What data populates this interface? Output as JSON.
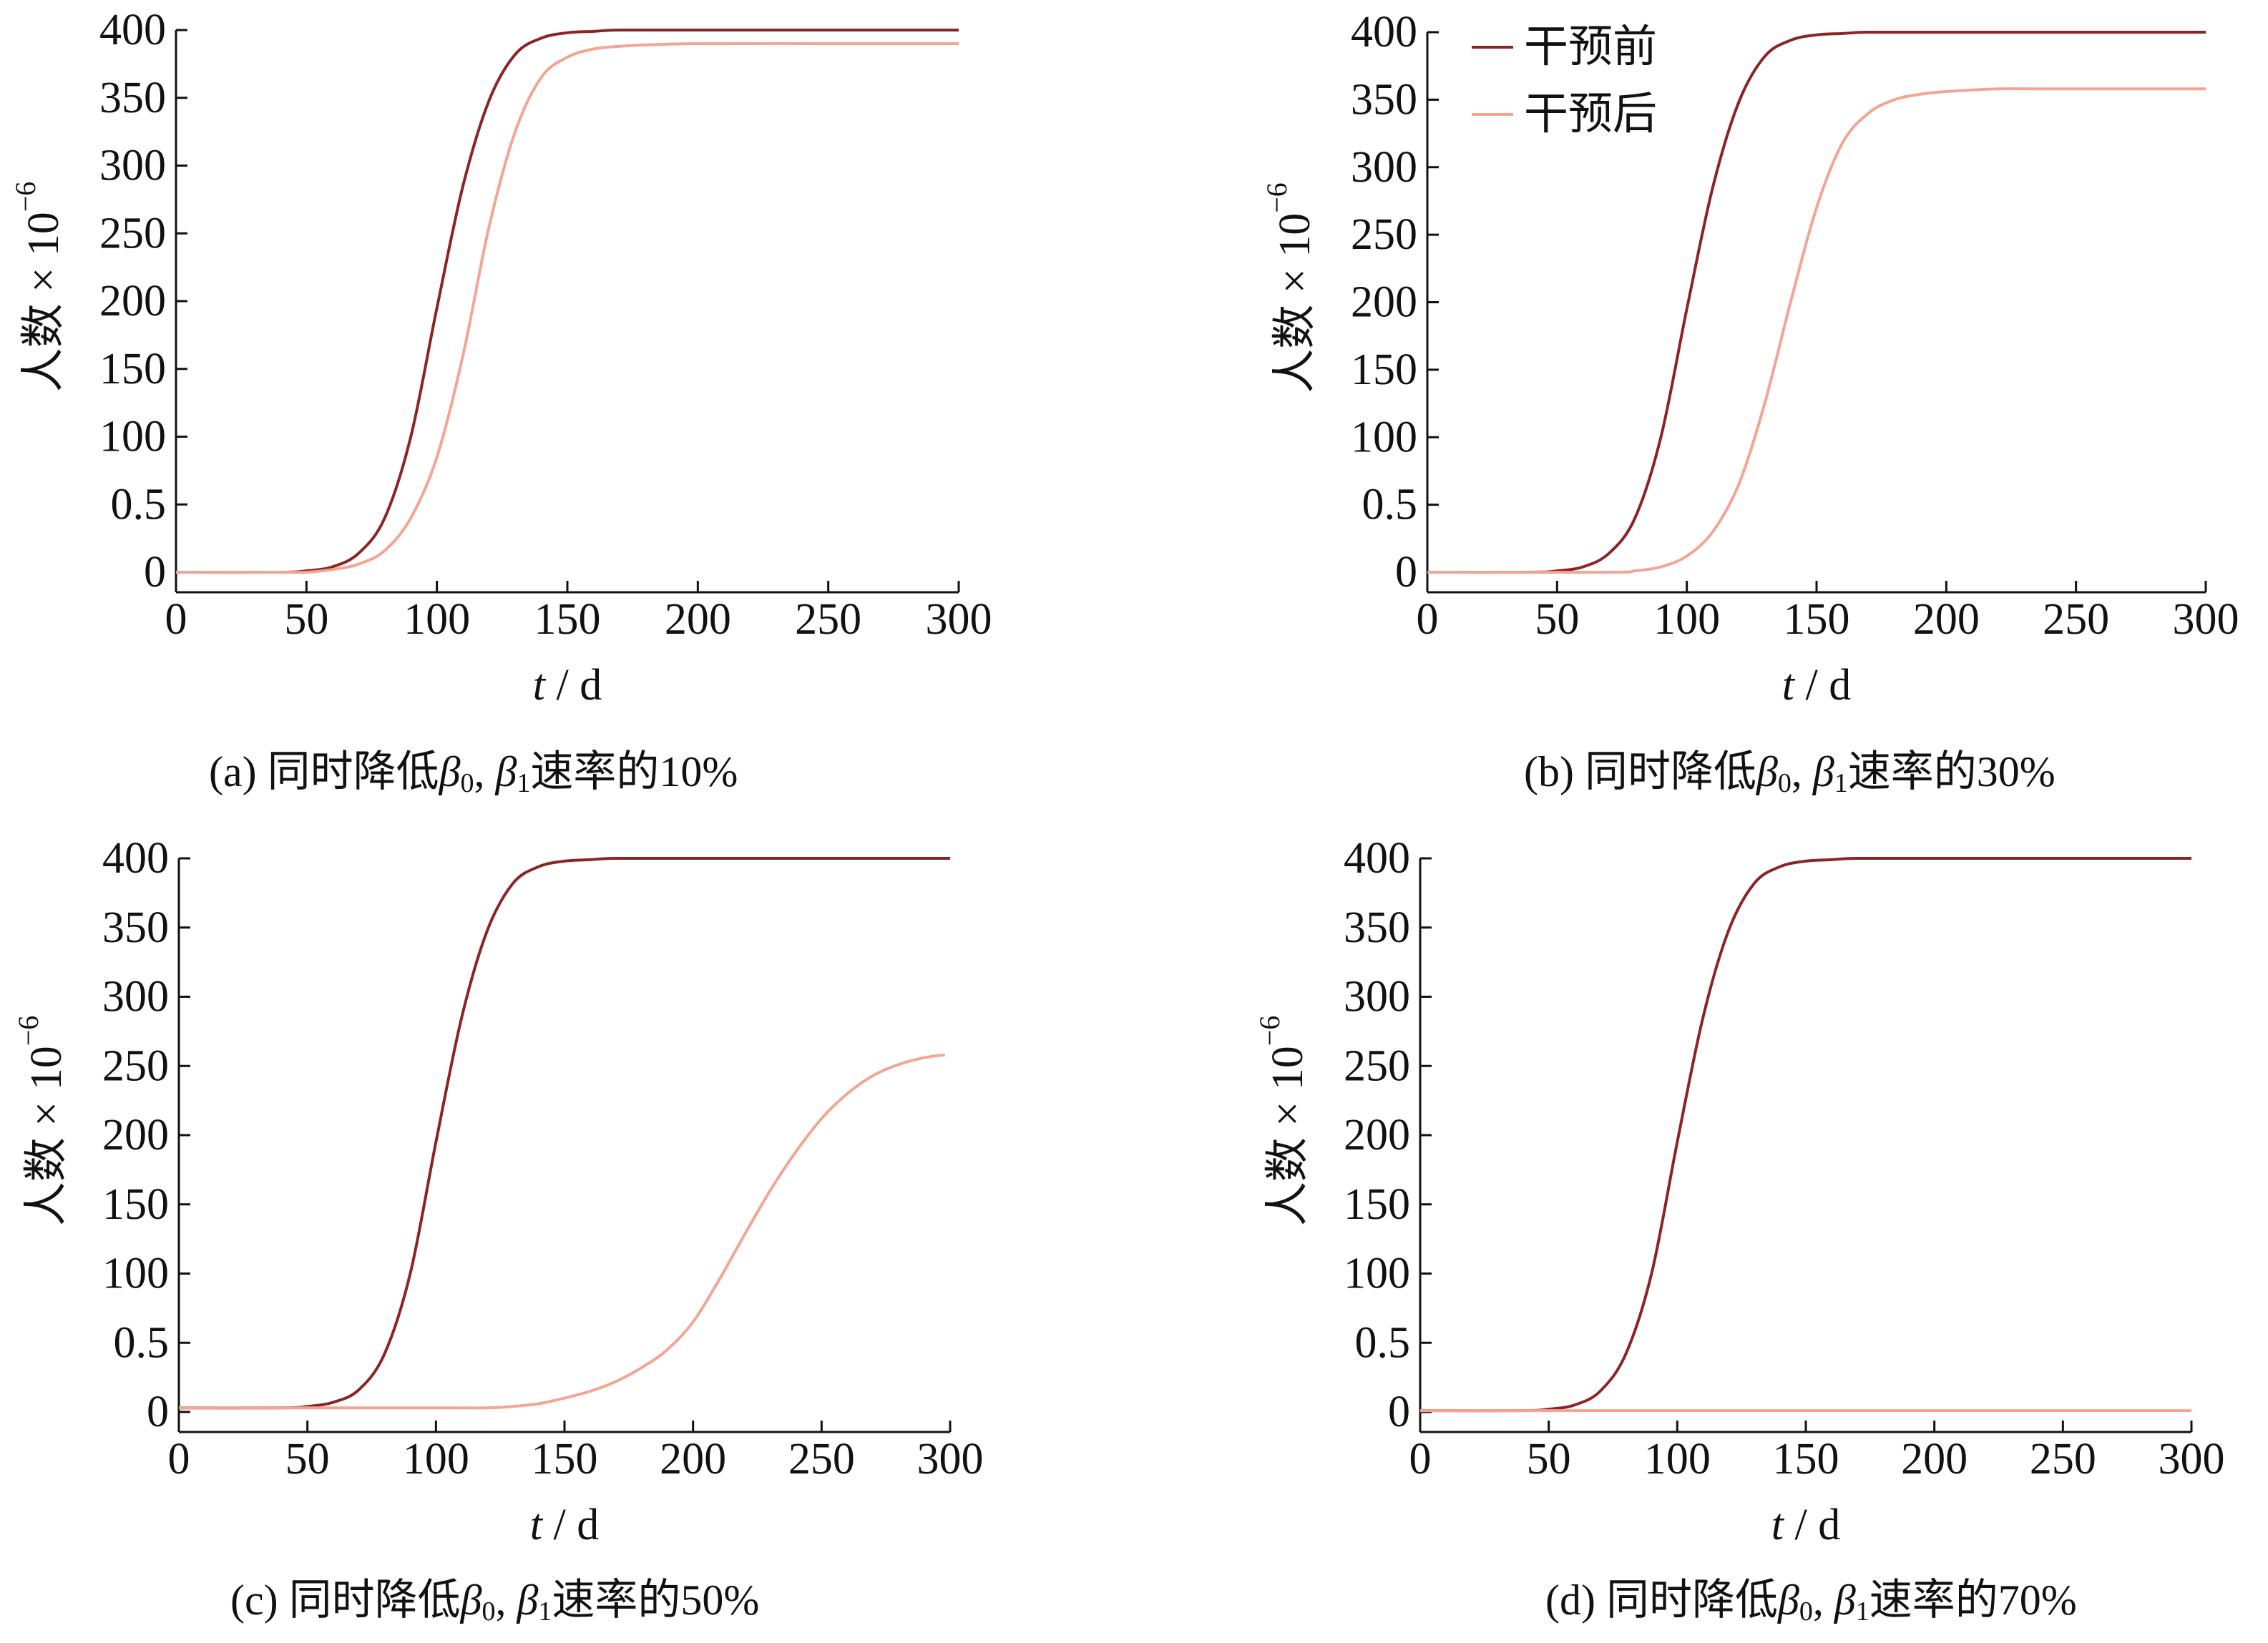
{
  "legend": [
    {
      "label": "干预前",
      "color": "#8b2525"
    },
    {
      "label": "干预后",
      "color": "#f2a594"
    }
  ],
  "axis_text": {
    "ylabel": "人数 × 10",
    "ylabel_exp": "−6",
    "xlabel_var": "t",
    "xlabel_unit": " / d"
  },
  "captions": [
    {
      "prefix": "(a)  同时降低",
      "beta0": "β",
      "sub0": "0",
      "mid": ", ",
      "beta1": "β",
      "sub1": "1",
      "suffix": "速率的10%"
    },
    {
      "prefix": "(b)  同时降低",
      "beta0": "β",
      "sub0": "0",
      "mid": ", ",
      "beta1": "β",
      "sub1": "1",
      "suffix": "速率的30%"
    },
    {
      "prefix": "(c)  同时降低",
      "beta0": "β",
      "sub0": "0",
      "mid": ", ",
      "beta1": "β",
      "sub1": "1",
      "suffix": "速率的50%"
    },
    {
      "prefix": "(d)  同时降低",
      "beta0": "β",
      "sub0": "0",
      "mid": ", ",
      "beta1": "β",
      "sub1": "1",
      "suffix": "速率的70%"
    }
  ],
  "chart_data": [
    {
      "type": "line",
      "caption": "(a) 同时降低β0, β1速率的10%",
      "xlabel": "t / d",
      "ylabel": "人数 × 10−6",
      "xticks": [
        "0",
        "50",
        "100",
        "150",
        "200",
        "250",
        "300"
      ],
      "yticks": [
        "0",
        "0.5",
        "100",
        "150",
        "200",
        "250",
        "300",
        "350",
        "400"
      ],
      "xlim": [
        0,
        300
      ],
      "ylim": [
        0,
        400
      ],
      "grid": false,
      "series": [
        {
          "name": "干预前",
          "color": "#8b2525",
          "x": [
            0,
            40,
            50,
            60,
            70,
            80,
            90,
            100,
            110,
            120,
            130,
            140,
            150,
            160,
            170,
            200,
            250,
            300
          ],
          "y": [
            0,
            0,
            1,
            4,
            14,
            40,
            100,
            195,
            285,
            348,
            382,
            394,
            398,
            399,
            400,
            400,
            400,
            400
          ]
        },
        {
          "name": "干预后",
          "color": "#f2a594",
          "x": [
            0,
            40,
            50,
            60,
            70,
            80,
            90,
            100,
            110,
            120,
            130,
            140,
            150,
            160,
            170,
            180,
            200,
            250,
            300
          ],
          "y": [
            0,
            0,
            0,
            2,
            6,
            16,
            40,
            85,
            160,
            255,
            325,
            365,
            380,
            386,
            388,
            389,
            390,
            390,
            390
          ]
        }
      ]
    },
    {
      "type": "line",
      "caption": "(b) 同时降低β0, β1速率的30%",
      "xlabel": "t / d",
      "ylabel": "人数 × 10−6",
      "xticks": [
        "0",
        "50",
        "100",
        "150",
        "200",
        "250",
        "300"
      ],
      "yticks": [
        "0",
        "0.5",
        "100",
        "150",
        "200",
        "250",
        "300",
        "350",
        "400"
      ],
      "xlim": [
        0,
        300
      ],
      "ylim": [
        0,
        400
      ],
      "grid": false,
      "legend": "top-left",
      "series": [
        {
          "name": "干预前",
          "color": "#8b2525",
          "x": [
            0,
            40,
            50,
            60,
            70,
            80,
            90,
            100,
            110,
            120,
            130,
            140,
            150,
            160,
            170,
            200,
            250,
            300
          ],
          "y": [
            0,
            0,
            1,
            4,
            14,
            40,
            100,
            195,
            285,
            348,
            382,
            394,
            398,
            399,
            400,
            400,
            400,
            400
          ]
        },
        {
          "name": "干预后",
          "color": "#f2a594",
          "x": [
            0,
            70,
            80,
            90,
            100,
            110,
            120,
            130,
            140,
            150,
            160,
            170,
            180,
            190,
            200,
            220,
            240,
            300
          ],
          "y": [
            0,
            0,
            1,
            4,
            12,
            30,
            65,
            125,
            200,
            270,
            318,
            340,
            350,
            354,
            356,
            358,
            358,
            358
          ]
        }
      ]
    },
    {
      "type": "line",
      "caption": "(c) 同时降低β0, β1速率的50%",
      "xlabel": "t / d",
      "ylabel": "人数 × 10−6",
      "xticks": [
        "0",
        "50",
        "100",
        "150",
        "200",
        "250",
        "300"
      ],
      "yticks": [
        "0",
        "0.5",
        "100",
        "150",
        "200",
        "250",
        "300",
        "350",
        "400"
      ],
      "xlim": [
        0,
        300
      ],
      "ylim": [
        0,
        400
      ],
      "grid": false,
      "series": [
        {
          "name": "干预前",
          "color": "#8b2525",
          "x": [
            0,
            40,
            50,
            60,
            70,
            80,
            90,
            100,
            110,
            120,
            130,
            140,
            150,
            160,
            170,
            200,
            250,
            300
          ],
          "y": [
            3,
            3,
            4,
            7,
            16,
            42,
            100,
            195,
            285,
            348,
            382,
            394,
            398,
            399,
            400,
            400,
            400,
            400
          ]
        },
        {
          "name": "干预后",
          "color": "#f2a594",
          "x": [
            0,
            100,
            120,
            130,
            140,
            150,
            160,
            170,
            180,
            190,
            200,
            210,
            220,
            230,
            240,
            250,
            260,
            270,
            280,
            290,
            298
          ],
          "y": [
            3,
            3,
            3,
            4,
            6,
            10,
            15,
            22,
            32,
            45,
            65,
            95,
            128,
            160,
            188,
            212,
            230,
            243,
            251,
            256,
            258
          ]
        }
      ]
    },
    {
      "type": "line",
      "caption": "(d) 同时降低β0, β1速率的70%",
      "xlabel": "t / d",
      "ylabel": "人数 × 10−6",
      "xticks": [
        "0",
        "50",
        "100",
        "150",
        "200",
        "250",
        "300"
      ],
      "yticks": [
        "0",
        "0.5",
        "100",
        "150",
        "200",
        "250",
        "300",
        "350",
        "400"
      ],
      "xlim": [
        0,
        300
      ],
      "ylim": [
        0,
        400
      ],
      "grid": false,
      "series": [
        {
          "name": "干预前",
          "color": "#8b2525",
          "x": [
            0,
            40,
            50,
            60,
            70,
            80,
            90,
            100,
            110,
            120,
            130,
            140,
            150,
            160,
            170,
            200,
            250,
            300
          ],
          "y": [
            1,
            1,
            2,
            5,
            15,
            42,
            100,
            195,
            285,
            348,
            382,
            394,
            398,
            399,
            400,
            400,
            400,
            400
          ]
        },
        {
          "name": "干预后",
          "color": "#f2a594",
          "x": [
            0,
            100,
            200,
            300
          ],
          "y": [
            1,
            1,
            1,
            1
          ]
        }
      ]
    }
  ]
}
